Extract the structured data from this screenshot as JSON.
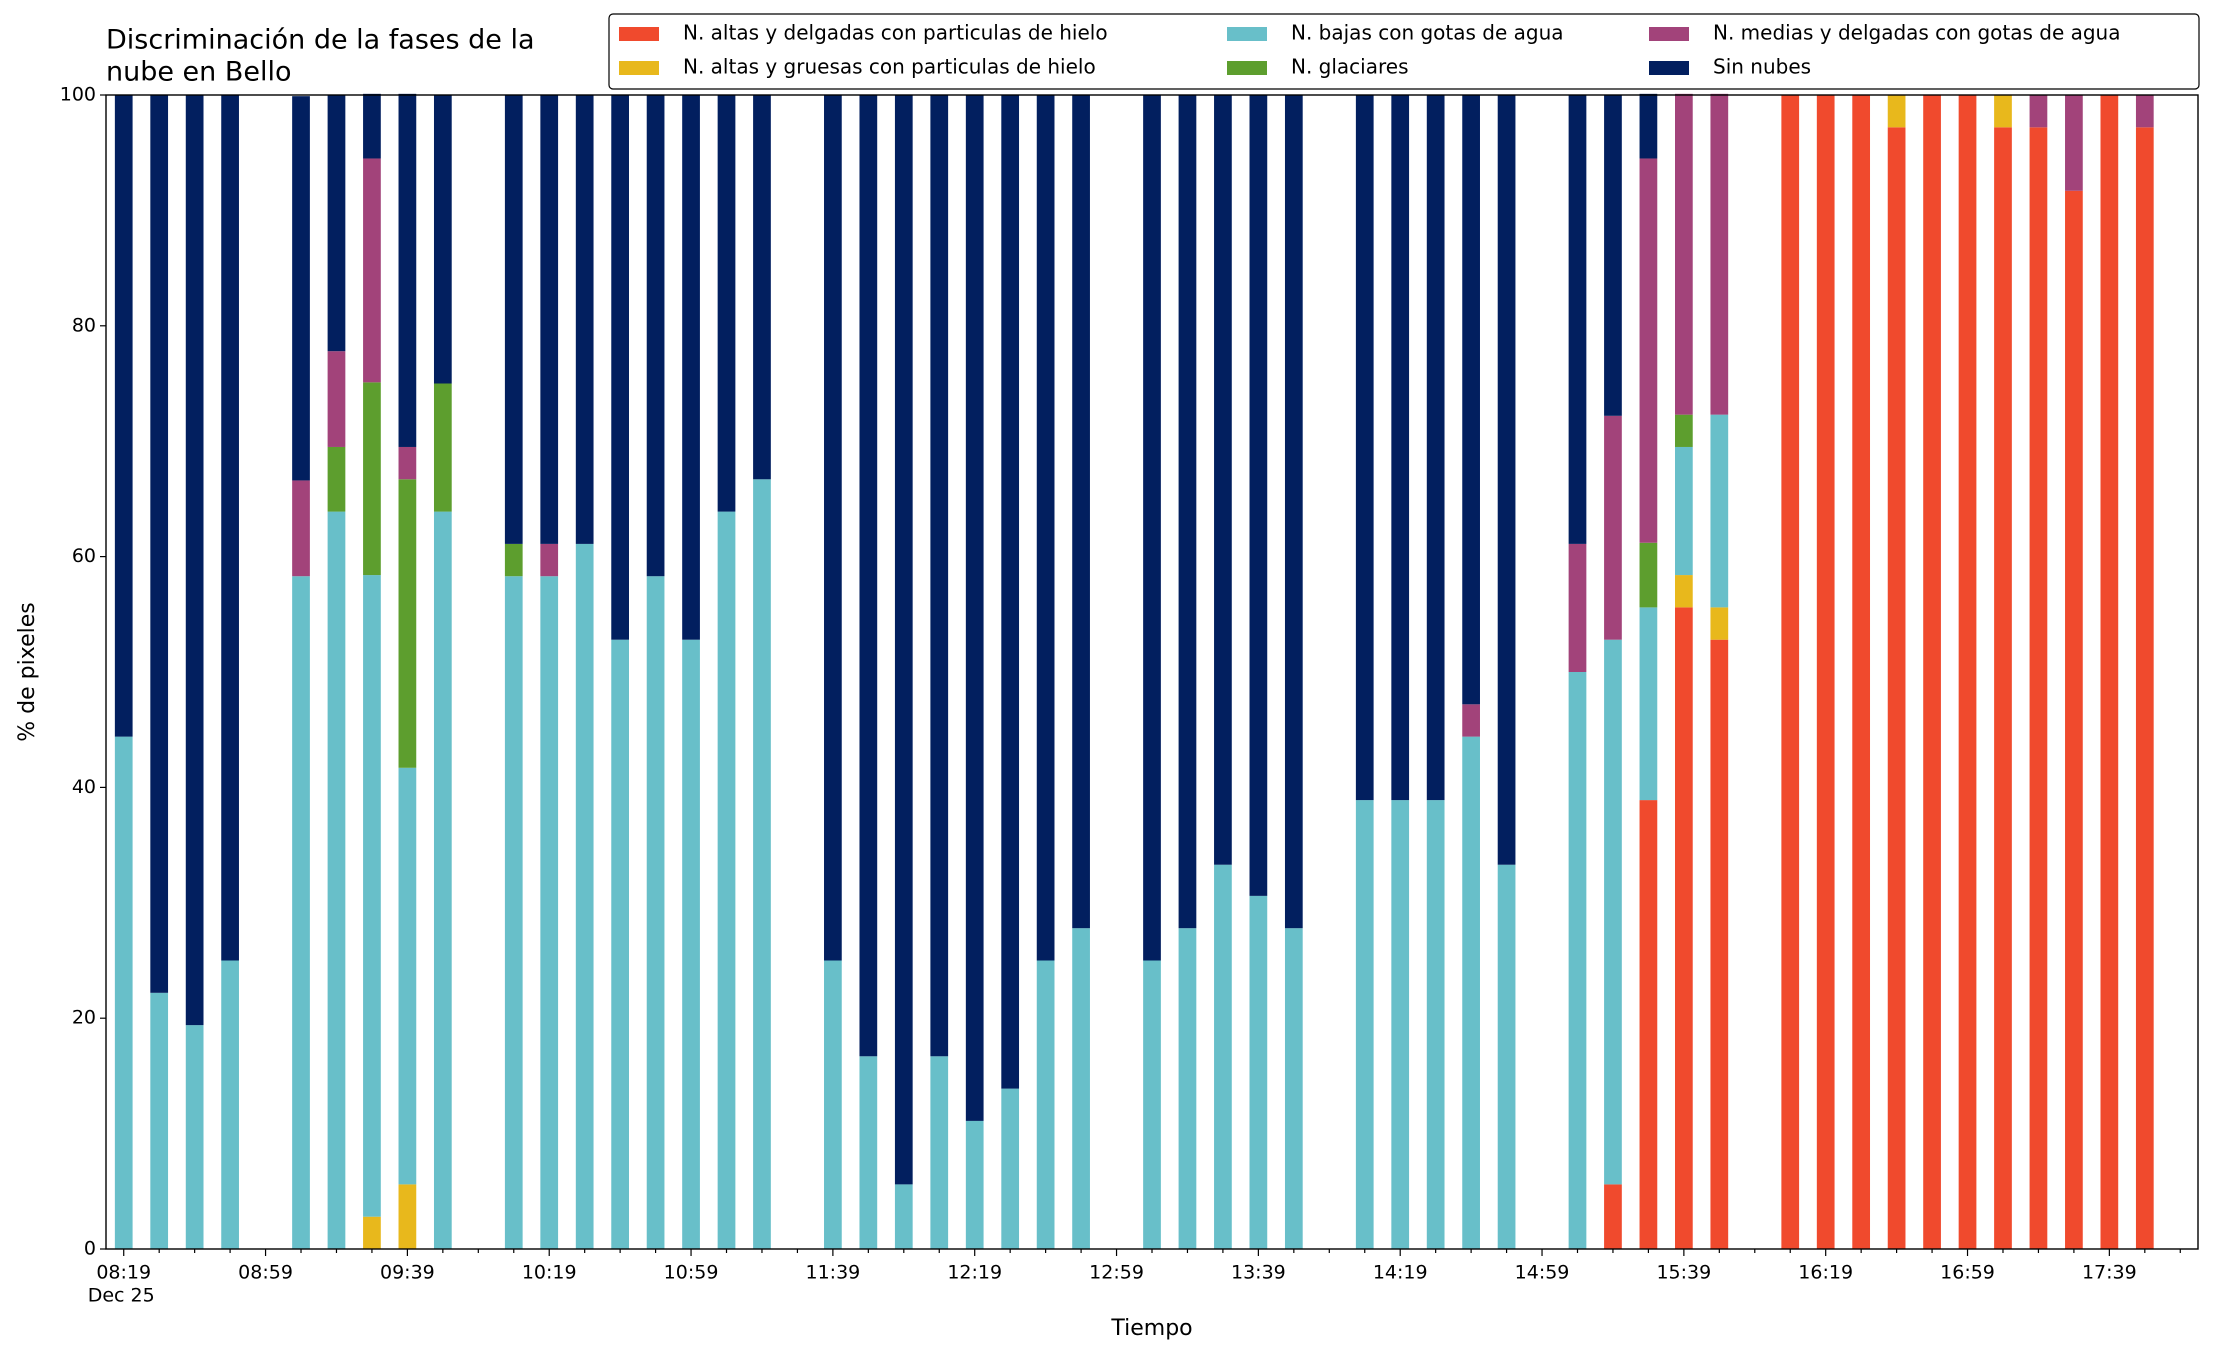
{
  "chart_data": {
    "type": "stacked_bar",
    "title": [
      "Discriminación de la fases de la",
      "nube en Bello"
    ],
    "xlabel": "Tiempo",
    "ylabel": "% de pixeles",
    "date_label": "Dec 25",
    "categories": [
      "08:19",
      null,
      null,
      null,
      "08:59",
      null,
      null,
      null,
      "09:39",
      null,
      null,
      null,
      "10:19",
      null,
      null,
      null,
      "10:59",
      null,
      null,
      null,
      "11:39",
      null,
      null,
      null,
      "12:19",
      null,
      null,
      null,
      "12:59",
      null,
      null,
      null,
      "13:39",
      null,
      null,
      null,
      "14:19",
      null,
      null,
      null,
      "14:59",
      null,
      null,
      null,
      "15:39",
      null,
      null,
      null,
      "16:19",
      null,
      null,
      null,
      "16:59",
      null,
      null,
      null,
      "17:39",
      null,
      null
    ],
    "ylim": [
      0,
      100
    ],
    "yticks": [
      0,
      20,
      40,
      60,
      80,
      100
    ],
    "legend": "upper right",
    "series": [
      {
        "name": "N. altas y delgadas con particulas de hielo",
        "color": "#f04a2d",
        "values": [
          0,
          0,
          0,
          0,
          null,
          0,
          0,
          0,
          0,
          0,
          null,
          0,
          0,
          0,
          0,
          0,
          0,
          0,
          0,
          null,
          0,
          0,
          0,
          0,
          0,
          0,
          0,
          0,
          null,
          0,
          0,
          0,
          0,
          0,
          null,
          0,
          0,
          0,
          0,
          0,
          null,
          0,
          5.6,
          38.9,
          55.6,
          52.8,
          null,
          100,
          100,
          100,
          97.2,
          100,
          100,
          97.2,
          97.2,
          91.7,
          100,
          97.2,
          null
        ]
      },
      {
        "name": "N. altas y gruesas con particulas de hielo",
        "color": "#e8b81c",
        "values": [
          0,
          0,
          0,
          0,
          null,
          0,
          0,
          2.8,
          5.6,
          0,
          null,
          0,
          0,
          0,
          0,
          0,
          0,
          0,
          0,
          null,
          0,
          0,
          0,
          0,
          0,
          0,
          0,
          0,
          null,
          0,
          0,
          0,
          0,
          0,
          null,
          0,
          0,
          0,
          0,
          0,
          null,
          0,
          0,
          0,
          2.8,
          2.8,
          null,
          0,
          0,
          0,
          2.8,
          0,
          0,
          2.8,
          0,
          0,
          0,
          0,
          null
        ]
      },
      {
        "name": "N. bajas con gotas de agua",
        "color": "#68bfc9",
        "values": [
          44.4,
          22.2,
          19.4,
          25,
          null,
          58.3,
          63.9,
          55.6,
          36.1,
          63.9,
          null,
          58.3,
          58.3,
          61.1,
          52.8,
          58.3,
          52.8,
          63.9,
          66.7,
          null,
          25,
          16.7,
          5.6,
          16.7,
          11.1,
          13.9,
          25,
          27.8,
          null,
          25,
          27.8,
          33.3,
          30.6,
          27.8,
          null,
          38.9,
          38.9,
          38.9,
          44.4,
          33.3,
          null,
          50,
          47.2,
          16.7,
          11.1,
          16.7,
          null,
          0,
          0,
          0,
          0,
          0,
          0,
          0,
          0,
          0,
          0,
          0,
          null
        ]
      },
      {
        "name": "N. glaciares",
        "color": "#5d9e2e",
        "values": [
          0,
          0,
          0,
          0,
          null,
          0,
          5.6,
          16.7,
          25,
          11.1,
          null,
          2.8,
          0,
          0,
          0,
          0,
          0,
          0,
          0,
          null,
          0,
          0,
          0,
          0,
          0,
          0,
          0,
          0,
          null,
          0,
          0,
          0,
          0,
          0,
          null,
          0,
          0,
          0,
          0,
          0,
          null,
          0,
          0,
          5.6,
          2.8,
          0,
          null,
          0,
          0,
          0,
          0,
          0,
          0,
          0,
          0,
          0,
          0,
          0,
          null
        ]
      },
      {
        "name": "N. medias y delgadas con gotas de agua",
        "color": "#a2437a",
        "values": [
          0,
          0,
          0,
          0,
          null,
          8.3,
          8.3,
          19.4,
          2.8,
          0,
          null,
          0,
          2.8,
          0,
          0,
          0,
          0,
          0,
          0,
          null,
          0,
          0,
          0,
          0,
          0,
          0,
          0,
          0,
          null,
          0,
          0,
          0,
          0,
          0,
          null,
          0,
          0,
          0,
          2.8,
          0,
          null,
          11.1,
          19.4,
          33.3,
          27.8,
          27.8,
          null,
          0,
          0,
          0,
          0,
          0,
          0,
          0,
          2.8,
          8.3,
          0,
          2.8,
          null
        ]
      },
      {
        "name": "Sin nubes",
        "color": "#021f5f",
        "values": [
          55.6,
          77.8,
          80.6,
          75,
          null,
          33.3,
          22.2,
          5.6,
          30.6,
          25,
          null,
          38.9,
          38.9,
          38.9,
          47.2,
          41.7,
          47.2,
          36.1,
          33.3,
          null,
          75,
          83.3,
          94.4,
          83.3,
          88.9,
          86.1,
          75,
          72.2,
          null,
          75,
          72.2,
          66.7,
          69.4,
          72.2,
          null,
          61.1,
          61.1,
          61.1,
          52.8,
          66.7,
          null,
          38.9,
          27.8,
          5.6,
          0,
          0,
          null,
          0,
          0,
          0,
          0,
          0,
          0,
          0,
          0,
          0,
          0,
          0,
          null
        ]
      }
    ]
  }
}
